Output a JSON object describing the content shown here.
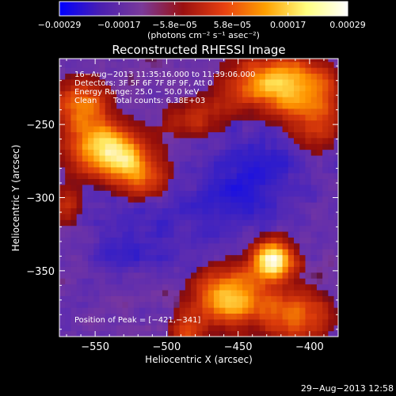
{
  "chart_data": {
    "type": "heatmap",
    "title": "Reconstructed RHESSI Image",
    "xlabel": "Heliocentric X (arcsec)",
    "ylabel": "Heliocentric Y (arcsec)",
    "xlim": [
      -575,
      -380
    ],
    "ylim": [
      -395,
      -205
    ],
    "x_ticks": [
      -550,
      -500,
      -450,
      -400
    ],
    "y_ticks": [
      -250,
      -300,
      -350
    ],
    "x_tick_labels": [
      "−550",
      "−500",
      "−450",
      "−400"
    ],
    "y_tick_labels": [
      "−250",
      "−300",
      "−350"
    ],
    "colorbar": {
      "range": [
        -0.00029,
        0.00029
      ],
      "tick_values": [
        -0.00029,
        -0.00017,
        -5.8e-05,
        5.8e-05,
        0.00017,
        0.00029
      ],
      "tick_labels": [
        "−0.00029",
        "−0.00017",
        "−5.8e−05",
        "5.8e−05",
        "0.00017",
        "0.00029"
      ],
      "units_label": "(photons cm⁻² s⁻¹ asec⁻²)",
      "colors": [
        "#0000ff",
        "#4a1fb0",
        "#7a3a9a",
        "#9a1010",
        "#e84010",
        "#ffa000",
        "#ffff80",
        "#ffffff"
      ]
    },
    "annotations": {
      "time_range": "16−Aug−2013 11:35:16.000 to 11:39:06.000",
      "detectors": "Detectors: 3F 5F 6F 7F 8F 9F, Att 0",
      "energy_range": "Energy Range: 25.0 − 50.0 keV",
      "clean": "Clean",
      "total_counts": "Total counts: 6.38E+03",
      "peak_position": "Position of Peak = [−421,−341]"
    },
    "peak": [
      -421,
      -341
    ],
    "sources": [
      {
        "x": -425,
        "y": -342,
        "sx": 10,
        "sy": 9,
        "amp": 1.0
      },
      {
        "x": -455,
        "y": -368,
        "sx": 18,
        "sy": 14,
        "amp": 0.75
      },
      {
        "x": -408,
        "y": -380,
        "sx": 16,
        "sy": 12,
        "amp": 0.55
      },
      {
        "x": -425,
        "y": -222,
        "sx": 22,
        "sy": 14,
        "amp": 0.75
      },
      {
        "x": -395,
        "y": -240,
        "sx": 12,
        "sy": 18,
        "amp": 0.45
      },
      {
        "x": -540,
        "y": -268,
        "sx": 18,
        "sy": 12,
        "amp": 0.85
      },
      {
        "x": -560,
        "y": -238,
        "sx": 14,
        "sy": 14,
        "amp": 0.55
      },
      {
        "x": -520,
        "y": -285,
        "sx": 14,
        "sy": 10,
        "amp": 0.45
      },
      {
        "x": -480,
        "y": -245,
        "sx": 16,
        "sy": 10,
        "amp": 0.3
      },
      {
        "x": -485,
        "y": -390,
        "sx": 8,
        "sy": 8,
        "amp": 0.4
      },
      {
        "x": -570,
        "y": -305,
        "sx": 8,
        "sy": 10,
        "amp": 0.3
      }
    ],
    "negative_regions": [
      {
        "x": -440,
        "y": -285,
        "sx": 25,
        "sy": 22,
        "amp": 0.6
      },
      {
        "x": -520,
        "y": -330,
        "sx": 25,
        "sy": 18,
        "amp": 0.4
      },
      {
        "x": -470,
        "y": -310,
        "sx": 20,
        "sy": 15,
        "amp": 0.3
      }
    ]
  },
  "footer": {
    "date_stamp": "29−Aug−2013 12:58"
  }
}
